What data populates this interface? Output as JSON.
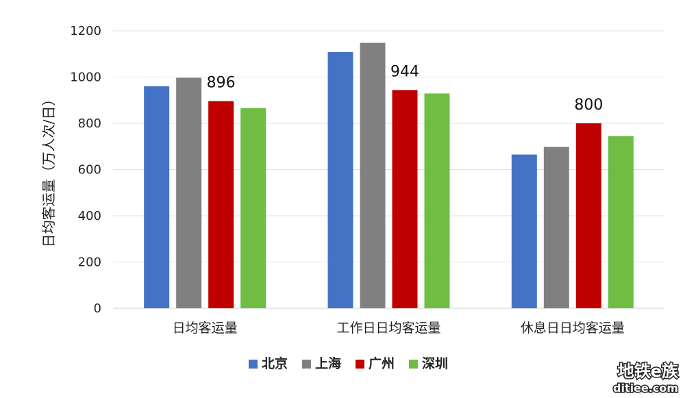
{
  "chart_data": {
    "type": "bar",
    "categories": [
      "日均客运量",
      "工作日日均客运量",
      "休息日日均客运量"
    ],
    "series": [
      {
        "name": "北京",
        "color": "#4472C4",
        "values": [
          960,
          1108,
          665
        ]
      },
      {
        "name": "上海",
        "color": "#808080",
        "values": [
          997,
          1148,
          698
        ]
      },
      {
        "name": "广州",
        "color": "#C00000",
        "values": [
          896,
          944,
          800
        ]
      },
      {
        "name": "深圳",
        "color": "#70BD44",
        "values": [
          866,
          929,
          745
        ]
      }
    ],
    "data_labels": [
      {
        "series": "广州",
        "category_index": 0,
        "text": "896"
      },
      {
        "series": "广州",
        "category_index": 1,
        "text": "944"
      },
      {
        "series": "广州",
        "category_index": 2,
        "text": "800"
      }
    ],
    "title": "",
    "xlabel": "",
    "ylabel": "日均客运量（万人次/日）",
    "ylim": [
      0,
      1200
    ],
    "yticks": [
      0,
      200,
      400,
      600,
      800,
      1000,
      1200
    ],
    "grid": true,
    "legend_position": "bottom"
  },
  "watermark": {
    "main": "地铁e族",
    "sub": "ditiee.com"
  }
}
